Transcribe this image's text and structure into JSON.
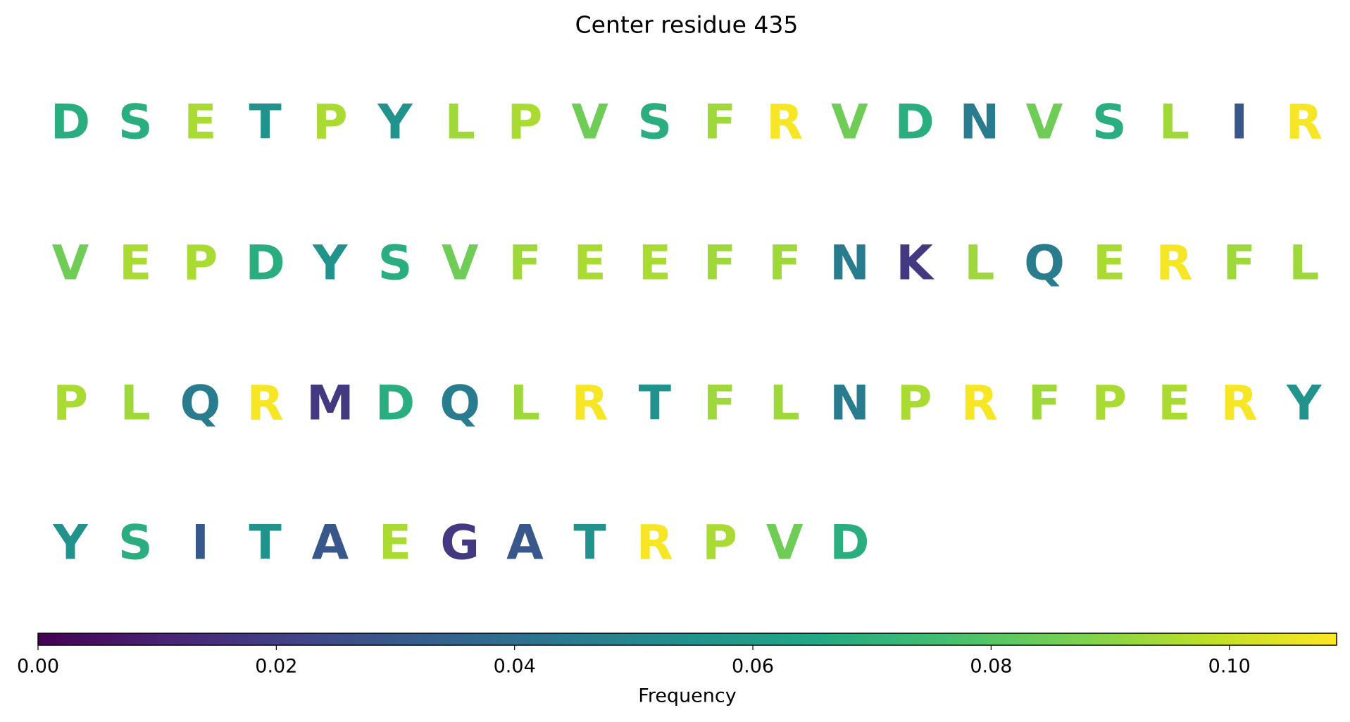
{
  "chart_data": {
    "type": "sequence",
    "title": "Center residue 435",
    "residues": [
      "D",
      "S",
      "E",
      "T",
      "P",
      "Y",
      "L",
      "P",
      "V",
      "S",
      "F",
      "R",
      "V",
      "D",
      "N",
      "V",
      "S",
      "L",
      "I",
      "R",
      "V",
      "E",
      "P",
      "D",
      "Y",
      "S",
      "V",
      "F",
      "E",
      "E",
      "F",
      "F",
      "N",
      "K",
      "L",
      "Q",
      "E",
      "R",
      "F",
      "L",
      "P",
      "L",
      "Q",
      "R",
      "M",
      "D",
      "Q",
      "L",
      "R",
      "T",
      "F",
      "L",
      "N",
      "P",
      "R",
      "F",
      "P",
      "E",
      "R",
      "Y",
      "Y",
      "S",
      "I",
      "T",
      "A",
      "E",
      "G",
      "A",
      "T",
      "R",
      "P",
      "V",
      "D"
    ],
    "values": [
      0.068,
      0.068,
      0.095,
      0.055,
      0.095,
      0.055,
      0.093,
      0.095,
      0.085,
      0.068,
      0.093,
      0.108,
      0.085,
      0.068,
      0.045,
      0.085,
      0.068,
      0.093,
      0.03,
      0.108,
      0.085,
      0.095,
      0.095,
      0.068,
      0.055,
      0.068,
      0.085,
      0.093,
      0.095,
      0.095,
      0.093,
      0.093,
      0.045,
      0.018,
      0.093,
      0.045,
      0.095,
      0.108,
      0.093,
      0.093,
      0.095,
      0.093,
      0.045,
      0.108,
      0.018,
      0.068,
      0.045,
      0.093,
      0.108,
      0.055,
      0.093,
      0.093,
      0.045,
      0.095,
      0.108,
      0.093,
      0.095,
      0.095,
      0.108,
      0.055,
      0.055,
      0.068,
      0.03,
      0.055,
      0.03,
      0.095,
      0.018,
      0.03,
      0.055,
      0.108,
      0.095,
      0.085,
      0.068
    ],
    "colormap": "viridis",
    "colorbar": {
      "label": "Frequency",
      "lim": [
        0,
        0.109
      ],
      "ticks": [
        {
          "value": 0,
          "label": "0.00"
        },
        {
          "value": 0.02,
          "label": "0.02"
        },
        {
          "value": 0.04,
          "label": "0.04"
        },
        {
          "value": 0.06,
          "label": "0.06"
        },
        {
          "value": 0.08,
          "label": "0.08"
        },
        {
          "value": 0.1,
          "label": "0.10"
        }
      ]
    }
  }
}
